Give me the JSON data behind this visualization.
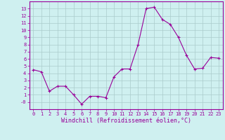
{
  "x": [
    0,
    1,
    2,
    3,
    4,
    5,
    6,
    7,
    8,
    9,
    10,
    11,
    12,
    13,
    14,
    15,
    16,
    17,
    18,
    19,
    20,
    21,
    22,
    23
  ],
  "y": [
    4.5,
    4.2,
    1.5,
    2.2,
    2.2,
    1.0,
    -0.3,
    0.8,
    0.8,
    0.6,
    3.5,
    4.6,
    4.6,
    8.0,
    13.0,
    13.2,
    11.5,
    10.8,
    9.0,
    6.5,
    4.6,
    4.7,
    6.2,
    6.1
  ],
  "line_color": "#990099",
  "marker": "+",
  "markersize": 3,
  "linewidth": 0.8,
  "markeredgewidth": 0.8,
  "bg_color": "#cff0f0",
  "grid_color": "#aacccc",
  "xlabel": "Windchill (Refroidissement éolien,°C)",
  "ylim": [
    -1,
    14
  ],
  "xlim": [
    -0.5,
    23.5
  ],
  "yticks": [
    0,
    1,
    2,
    3,
    4,
    5,
    6,
    7,
    8,
    9,
    10,
    11,
    12,
    13
  ],
  "ytick_labels": [
    "-0",
    "1",
    "2",
    "3",
    "4",
    "5",
    "6",
    "7",
    "8",
    "9",
    "10",
    "11",
    "12",
    "13"
  ],
  "xticks": [
    0,
    1,
    2,
    3,
    4,
    5,
    6,
    7,
    8,
    9,
    10,
    11,
    12,
    13,
    14,
    15,
    16,
    17,
    18,
    19,
    20,
    21,
    22,
    23
  ],
  "tick_color": "#990099",
  "label_color": "#990099",
  "tick_fontsize": 5,
  "xlabel_fontsize": 6,
  "spine_color": "#990099"
}
